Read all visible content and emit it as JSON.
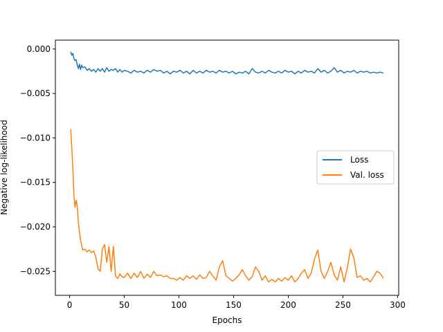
{
  "chart_data": {
    "type": "line",
    "title": "",
    "xlabel": "Epochs",
    "ylabel": "Negative log-likelihood",
    "xlim": [
      -13,
      301
    ],
    "ylim": [
      -0.0277,
      0.001
    ],
    "xticks": [
      0,
      50,
      100,
      150,
      200,
      250,
      300
    ],
    "yticks": [
      0.0,
      -0.005,
      -0.01,
      -0.015,
      -0.02,
      -0.025
    ],
    "ytick_labels": [
      "0.000",
      "−0.005",
      "−0.010",
      "−0.015",
      "−0.020",
      "−0.025"
    ],
    "grid": false,
    "legend_position": "center-right",
    "series": [
      {
        "name": "Loss",
        "color": "#1f77b4",
        "points": [
          [
            1,
            -0.0003
          ],
          [
            2,
            -0.0007
          ],
          [
            3,
            -0.0005
          ],
          [
            4,
            -0.0011
          ],
          [
            5,
            -0.0013
          ],
          [
            6,
            -0.0012
          ],
          [
            7,
            -0.0018
          ],
          [
            8,
            -0.0022
          ],
          [
            9,
            -0.0017
          ],
          [
            10,
            -0.0023
          ],
          [
            11,
            -0.0018
          ],
          [
            12,
            -0.0021
          ],
          [
            14,
            -0.002
          ],
          [
            16,
            -0.0024
          ],
          [
            18,
            -0.0022
          ],
          [
            20,
            -0.0025
          ],
          [
            22,
            -0.0023
          ],
          [
            24,
            -0.0026
          ],
          [
            26,
            -0.0022
          ],
          [
            28,
            -0.0025
          ],
          [
            30,
            -0.0022
          ],
          [
            32,
            -0.0026
          ],
          [
            34,
            -0.0021
          ],
          [
            36,
            -0.0025
          ],
          [
            38,
            -0.0023
          ],
          [
            40,
            -0.0024
          ],
          [
            42,
            -0.0022
          ],
          [
            44,
            -0.0026
          ],
          [
            46,
            -0.0023
          ],
          [
            48,
            -0.0026
          ],
          [
            50,
            -0.0024
          ],
          [
            53,
            -0.0025
          ],
          [
            56,
            -0.0027
          ],
          [
            59,
            -0.0024
          ],
          [
            62,
            -0.0026
          ],
          [
            65,
            -0.0025
          ],
          [
            68,
            -0.0027
          ],
          [
            71,
            -0.0024
          ],
          [
            74,
            -0.0026
          ],
          [
            77,
            -0.0023
          ],
          [
            80,
            -0.0025
          ],
          [
            83,
            -0.0024
          ],
          [
            86,
            -0.0027
          ],
          [
            89,
            -0.0025
          ],
          [
            92,
            -0.0028
          ],
          [
            95,
            -0.0025
          ],
          [
            98,
            -0.0026
          ],
          [
            101,
            -0.0024
          ],
          [
            104,
            -0.0027
          ],
          [
            107,
            -0.0025
          ],
          [
            110,
            -0.0028
          ],
          [
            113,
            -0.0024
          ],
          [
            116,
            -0.0027
          ],
          [
            119,
            -0.0025
          ],
          [
            122,
            -0.0027
          ],
          [
            125,
            -0.0024
          ],
          [
            128,
            -0.0026
          ],
          [
            131,
            -0.0025
          ],
          [
            134,
            -0.0027
          ],
          [
            137,
            -0.0024
          ],
          [
            140,
            -0.0026
          ],
          [
            143,
            -0.0025
          ],
          [
            146,
            -0.0027
          ],
          [
            149,
            -0.0025
          ],
          [
            152,
            -0.0028
          ],
          [
            155,
            -0.0026
          ],
          [
            158,
            -0.0027
          ],
          [
            161,
            -0.0025
          ],
          [
            164,
            -0.0028
          ],
          [
            167,
            -0.0022
          ],
          [
            170,
            -0.0026
          ],
          [
            173,
            -0.0027
          ],
          [
            176,
            -0.0025
          ],
          [
            179,
            -0.0027
          ],
          [
            182,
            -0.0024
          ],
          [
            185,
            -0.0026
          ],
          [
            188,
            -0.0027
          ],
          [
            191,
            -0.0025
          ],
          [
            194,
            -0.0027
          ],
          [
            197,
            -0.0024
          ],
          [
            200,
            -0.0026
          ],
          [
            203,
            -0.0025
          ],
          [
            206,
            -0.0028
          ],
          [
            209,
            -0.0025
          ],
          [
            212,
            -0.0027
          ],
          [
            215,
            -0.0024
          ],
          [
            218,
            -0.0026
          ],
          [
            221,
            -0.0025
          ],
          [
            224,
            -0.0027
          ],
          [
            227,
            -0.0022
          ],
          [
            230,
            -0.0026
          ],
          [
            233,
            -0.0024
          ],
          [
            236,
            -0.0027
          ],
          [
            239,
            -0.0025
          ],
          [
            242,
            -0.0021
          ],
          [
            245,
            -0.0026
          ],
          [
            248,
            -0.0024
          ],
          [
            251,
            -0.0027
          ],
          [
            254,
            -0.0025
          ],
          [
            257,
            -0.0026
          ],
          [
            260,
            -0.0024
          ],
          [
            263,
            -0.0027
          ],
          [
            266,
            -0.0025
          ],
          [
            269,
            -0.0026
          ],
          [
            272,
            -0.0025
          ],
          [
            275,
            -0.0027
          ],
          [
            278,
            -0.0026
          ],
          [
            281,
            -0.0027
          ],
          [
            284,
            -0.0026
          ],
          [
            287,
            -0.0027
          ]
        ]
      },
      {
        "name": "Val. loss",
        "color": "#ff7f0e",
        "points": [
          [
            1,
            -0.009
          ],
          [
            2,
            -0.011
          ],
          [
            3,
            -0.0135
          ],
          [
            4,
            -0.0165
          ],
          [
            5,
            -0.0178
          ],
          [
            6,
            -0.017
          ],
          [
            7,
            -0.0176
          ],
          [
            8,
            -0.0195
          ],
          [
            10,
            -0.0215
          ],
          [
            12,
            -0.0226
          ],
          [
            14,
            -0.0225
          ],
          [
            16,
            -0.0228
          ],
          [
            18,
            -0.0226
          ],
          [
            20,
            -0.0229
          ],
          [
            22,
            -0.0227
          ],
          [
            24,
            -0.0234
          ],
          [
            26,
            -0.0247
          ],
          [
            28,
            -0.025
          ],
          [
            30,
            -0.0225
          ],
          [
            32,
            -0.022
          ],
          [
            34,
            -0.024
          ],
          [
            36,
            -0.0222
          ],
          [
            38,
            -0.025
          ],
          [
            40,
            -0.0222
          ],
          [
            42,
            -0.0255
          ],
          [
            44,
            -0.0258
          ],
          [
            46,
            -0.0253
          ],
          [
            48,
            -0.0256
          ],
          [
            50,
            -0.0257
          ],
          [
            53,
            -0.0252
          ],
          [
            56,
            -0.0258
          ],
          [
            59,
            -0.0252
          ],
          [
            62,
            -0.0257
          ],
          [
            65,
            -0.025
          ],
          [
            68,
            -0.0258
          ],
          [
            71,
            -0.0253
          ],
          [
            74,
            -0.0257
          ],
          [
            77,
            -0.025
          ],
          [
            80,
            -0.0255
          ],
          [
            83,
            -0.0254
          ],
          [
            86,
            -0.0256
          ],
          [
            89,
            -0.0255
          ],
          [
            92,
            -0.0258
          ],
          [
            95,
            -0.0258
          ],
          [
            98,
            -0.026
          ],
          [
            101,
            -0.0257
          ],
          [
            104,
            -0.026
          ],
          [
            107,
            -0.0255
          ],
          [
            110,
            -0.0258
          ],
          [
            113,
            -0.0255
          ],
          [
            116,
            -0.0259
          ],
          [
            119,
            -0.0254
          ],
          [
            122,
            -0.0258
          ],
          [
            125,
            -0.0257
          ],
          [
            128,
            -0.025
          ],
          [
            131,
            -0.0255
          ],
          [
            134,
            -0.026
          ],
          [
            137,
            -0.0245
          ],
          [
            140,
            -0.0238
          ],
          [
            143,
            -0.0255
          ],
          [
            146,
            -0.0258
          ],
          [
            149,
            -0.0261
          ],
          [
            152,
            -0.0258
          ],
          [
            155,
            -0.0254
          ],
          [
            158,
            -0.0248
          ],
          [
            161,
            -0.0255
          ],
          [
            164,
            -0.026
          ],
          [
            167,
            -0.0256
          ],
          [
            170,
            -0.0245
          ],
          [
            173,
            -0.025
          ],
          [
            176,
            -0.026
          ],
          [
            179,
            -0.0255
          ],
          [
            182,
            -0.0262
          ],
          [
            185,
            -0.0259
          ],
          [
            188,
            -0.0262
          ],
          [
            191,
            -0.0258
          ],
          [
            194,
            -0.0261
          ],
          [
            197,
            -0.0257
          ],
          [
            200,
            -0.026
          ],
          [
            203,
            -0.0255
          ],
          [
            206,
            -0.0262
          ],
          [
            209,
            -0.0258
          ],
          [
            212,
            -0.0252
          ],
          [
            215,
            -0.0248
          ],
          [
            218,
            -0.0258
          ],
          [
            221,
            -0.0252
          ],
          [
            224,
            -0.0236
          ],
          [
            227,
            -0.0226
          ],
          [
            230,
            -0.025
          ],
          [
            233,
            -0.0258
          ],
          [
            236,
            -0.025
          ],
          [
            239,
            -0.024
          ],
          [
            242,
            -0.0254
          ],
          [
            245,
            -0.026
          ],
          [
            248,
            -0.0245
          ],
          [
            251,
            -0.0262
          ],
          [
            254,
            -0.0246
          ],
          [
            257,
            -0.0225
          ],
          [
            260,
            -0.0235
          ],
          [
            263,
            -0.0257
          ],
          [
            266,
            -0.0255
          ],
          [
            269,
            -0.026
          ],
          [
            272,
            -0.0258
          ],
          [
            275,
            -0.0262
          ],
          [
            278,
            -0.0256
          ],
          [
            281,
            -0.025
          ],
          [
            284,
            -0.0252
          ],
          [
            287,
            -0.0258
          ]
        ]
      }
    ]
  }
}
